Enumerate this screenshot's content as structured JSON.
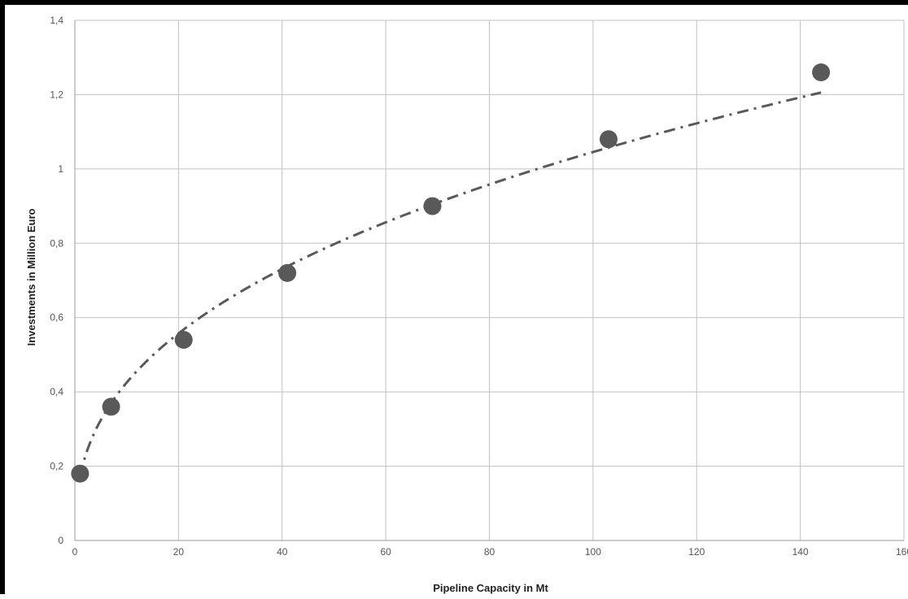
{
  "chart_data": {
    "type": "scatter",
    "title": "",
    "xlabel": "Pipeline Capacity in Mt",
    "ylabel": "Investments in Million Euro",
    "xlim": [
      0,
      160
    ],
    "ylim": [
      0,
      1.4
    ],
    "grid": true,
    "legend": "none",
    "x_ticks": [
      {
        "value": 0,
        "label": "0"
      },
      {
        "value": 20,
        "label": "20"
      },
      {
        "value": 40,
        "label": "40"
      },
      {
        "value": 60,
        "label": "60"
      },
      {
        "value": 80,
        "label": "80"
      },
      {
        "value": 100,
        "label": "100"
      },
      {
        "value": 120,
        "label": "120"
      },
      {
        "value": 140,
        "label": "140"
      },
      {
        "value": 160,
        "label": "160"
      }
    ],
    "y_ticks": [
      {
        "value": 0,
        "label": "0"
      },
      {
        "value": 0.2,
        "label": "0,2"
      },
      {
        "value": 0.4,
        "label": "0,4"
      },
      {
        "value": 0.6,
        "label": "0,6"
      },
      {
        "value": 0.8,
        "label": "0,8"
      },
      {
        "value": 1.0,
        "label": "1"
      },
      {
        "value": 1.2,
        "label": "1,2"
      },
      {
        "value": 1.4,
        "label": "1,4"
      }
    ],
    "series": [
      {
        "x": [
          1,
          7,
          21,
          41,
          69,
          103,
          144
        ],
        "y": [
          0.18,
          0.36,
          0.54,
          0.72,
          0.9,
          1.08,
          1.26
        ]
      }
    ],
    "trendline": {
      "style": "dash-dot",
      "type": "power"
    },
    "colors": {
      "marker": "#595959",
      "trendline": "#595959",
      "grid": "#c0c0c0"
    }
  }
}
